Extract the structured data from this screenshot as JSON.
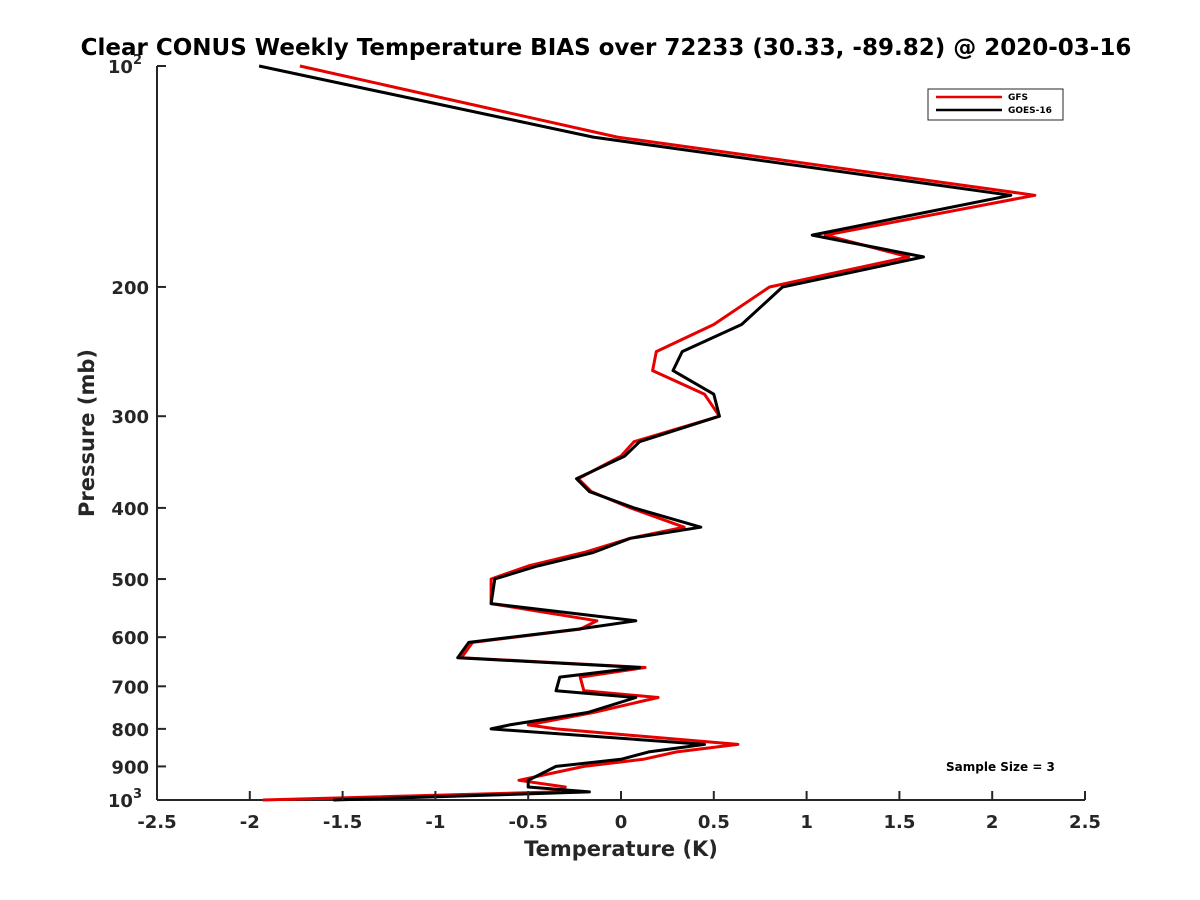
{
  "chart_data": {
    "type": "line",
    "title": "Clear CONUS Weekly Temperature BIAS over 72233 (30.33, -89.82) @ 2020-03-16",
    "xlabel": "Temperature (K)",
    "ylabel": "Pressure (mb)",
    "xlim": [
      -2.5,
      2.5
    ],
    "ylim": [
      100,
      1000
    ],
    "yscale": "log",
    "y_reversed": true,
    "grid": false,
    "legend_position": "top-right",
    "x_ticks": [
      {
        "value": -2.5,
        "label": "-2.5"
      },
      {
        "value": -2,
        "label": "-2"
      },
      {
        "value": -1.5,
        "label": "-1.5"
      },
      {
        "value": -1,
        "label": "-1"
      },
      {
        "value": -0.5,
        "label": "-0.5"
      },
      {
        "value": 0,
        "label": "0"
      },
      {
        "value": 0.5,
        "label": "0.5"
      },
      {
        "value": 1,
        "label": "1"
      },
      {
        "value": 1.5,
        "label": "1.5"
      },
      {
        "value": 2,
        "label": "2"
      },
      {
        "value": 2.5,
        "label": "2.5"
      }
    ],
    "y_ticks": [
      {
        "value": 100,
        "base": "10",
        "exp": "2"
      },
      {
        "value": 200,
        "label": "200"
      },
      {
        "value": 300,
        "label": "300"
      },
      {
        "value": 400,
        "label": "400"
      },
      {
        "value": 500,
        "label": "500"
      },
      {
        "value": 600,
        "label": "600"
      },
      {
        "value": 700,
        "label": "700"
      },
      {
        "value": 800,
        "label": "800"
      },
      {
        "value": 900,
        "label": "900"
      },
      {
        "value": 1000,
        "base": "10",
        "exp": "3"
      }
    ],
    "annotation": "Sample Size = 3",
    "series": [
      {
        "name": "GFS",
        "color": "#e60000",
        "points": [
          [
            -1.73,
            100
          ],
          [
            -0.02,
            125
          ],
          [
            2.23,
            150
          ],
          [
            1.1,
            170
          ],
          [
            1.55,
            182
          ],
          [
            0.8,
            200
          ],
          [
            0.5,
            225
          ],
          [
            0.19,
            245
          ],
          [
            0.17,
            260
          ],
          [
            0.45,
            280
          ],
          [
            0.53,
            300
          ],
          [
            0.07,
            325
          ],
          [
            0.0,
            340
          ],
          [
            -0.23,
            365
          ],
          [
            -0.16,
            380
          ],
          [
            0.05,
            400
          ],
          [
            0.34,
            425
          ],
          [
            0.05,
            440
          ],
          [
            -0.2,
            460
          ],
          [
            -0.5,
            480
          ],
          [
            -0.7,
            500
          ],
          [
            -0.7,
            540
          ],
          [
            -0.13,
            570
          ],
          [
            -0.22,
            585
          ],
          [
            -0.8,
            610
          ],
          [
            -0.86,
            640
          ],
          [
            0.13,
            660
          ],
          [
            -0.22,
            680
          ],
          [
            -0.2,
            710
          ],
          [
            0.2,
            725
          ],
          [
            -0.15,
            760
          ],
          [
            -0.5,
            790
          ],
          [
            -0.35,
            800
          ],
          [
            0.63,
            840
          ],
          [
            0.3,
            860
          ],
          [
            0.12,
            880
          ],
          [
            -0.2,
            900
          ],
          [
            -0.55,
            940
          ],
          [
            -0.3,
            960
          ],
          [
            -0.35,
            975
          ],
          [
            -1.93,
            1000
          ]
        ]
      },
      {
        "name": "GOES-16",
        "color": "#000000",
        "points": [
          [
            -1.95,
            100
          ],
          [
            -0.15,
            125
          ],
          [
            2.1,
            150
          ],
          [
            1.03,
            170
          ],
          [
            1.63,
            182
          ],
          [
            0.87,
            200
          ],
          [
            0.65,
            225
          ],
          [
            0.33,
            245
          ],
          [
            0.28,
            260
          ],
          [
            0.5,
            280
          ],
          [
            0.53,
            300
          ],
          [
            0.1,
            325
          ],
          [
            0.02,
            340
          ],
          [
            -0.24,
            365
          ],
          [
            -0.17,
            380
          ],
          [
            0.07,
            400
          ],
          [
            0.43,
            425
          ],
          [
            0.05,
            440
          ],
          [
            -0.15,
            460
          ],
          [
            -0.45,
            480
          ],
          [
            -0.68,
            500
          ],
          [
            -0.7,
            540
          ],
          [
            0.08,
            570
          ],
          [
            -0.23,
            585
          ],
          [
            -0.82,
            610
          ],
          [
            -0.88,
            640
          ],
          [
            0.1,
            660
          ],
          [
            -0.33,
            680
          ],
          [
            -0.35,
            710
          ],
          [
            0.08,
            725
          ],
          [
            -0.18,
            760
          ],
          [
            -0.6,
            790
          ],
          [
            -0.7,
            800
          ],
          [
            0.45,
            840
          ],
          [
            0.15,
            860
          ],
          [
            0.0,
            880
          ],
          [
            -0.35,
            900
          ],
          [
            -0.5,
            940
          ],
          [
            -0.5,
            960
          ],
          [
            -0.17,
            975
          ],
          [
            -1.55,
            1000
          ]
        ]
      }
    ]
  }
}
